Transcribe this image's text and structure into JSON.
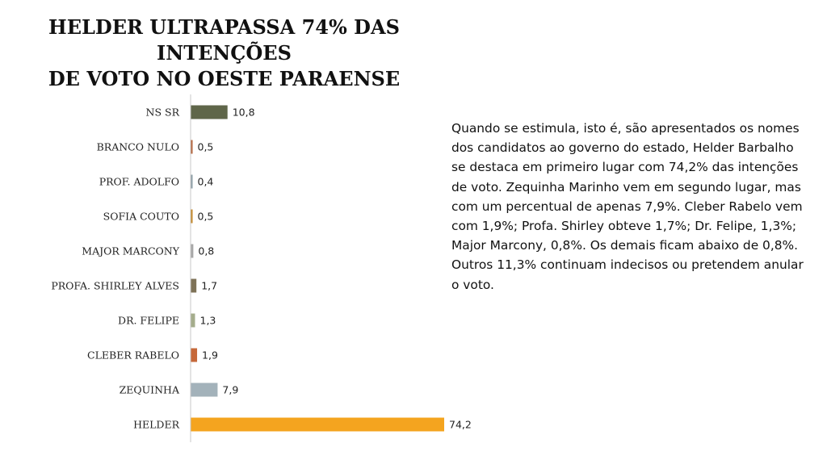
{
  "title": {
    "line1": "HELDER ULTRAPASSA 74% DAS INTENÇÕES",
    "line2": "DE VOTO NO OESTE PARAENSE"
  },
  "paragraph": "Quando se estimula, isto é, são apresentados os nomes dos candidatos ao governo do estado, Helder Barbalho se destaca em primeiro lugar com 74,2% das intenções de voto. Zequinha Marinho vem em segundo lugar, mas com um percentual de apenas 7,9%. Cleber Rabelo vem com 1,9%; Profa. Shirley obteve 1,7%; Dr. Felipe, 1,3%; Major Marcony, 0,8%. Os demais ficam abaixo de 0,8%. Outros 11,3% continuam indecisos ou pretendem anular o voto.",
  "chart_data": {
    "type": "bar",
    "orientation": "horizontal",
    "categories": [
      "NS SR",
      "BRANCO NULO",
      "PROF. ADOLFO",
      "SOFIA COUTO",
      "MAJOR MARCONY",
      "PROFA. SHIRLEY ALVES",
      "DR. FELIPE",
      "CLEBER RABELO",
      "ZEQUINHA",
      "HELDER"
    ],
    "values": [
      10.8,
      0.5,
      0.4,
      0.5,
      0.8,
      1.7,
      1.3,
      1.9,
      7.9,
      74.2
    ],
    "value_labels": [
      "10,8",
      "0,5",
      "0,4",
      "0,5",
      "0,8",
      "1,7",
      "1,3",
      "1,9",
      "7,9",
      "74,2"
    ],
    "colors": [
      "#5f6649",
      "#b5673f",
      "#8fa0a8",
      "#c48a2c",
      "#a8a8a8",
      "#7e7257",
      "#a5ad8c",
      "#c6683a",
      "#a3b2ba",
      "#f4a41f"
    ],
    "xlim": [
      0,
      74.2
    ],
    "grid": false,
    "legend": "none"
  }
}
